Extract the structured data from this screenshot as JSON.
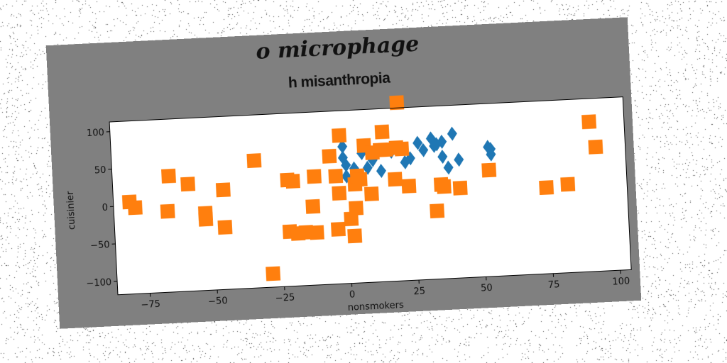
{
  "chart_data": {
    "type": "scatter",
    "suptitle": "o microphage",
    "title": "h misanthropia",
    "xlabel": "nonsmokers",
    "ylabel": "cuisinier",
    "xlim": [
      -87,
      104
    ],
    "ylim": [
      -118,
      113
    ],
    "xticks": [
      -75,
      -50,
      -25,
      0,
      25,
      50,
      75,
      100
    ],
    "yticks": [
      -100,
      -50,
      0,
      50,
      100
    ],
    "series": [
      {
        "marker": "diamond",
        "color": "#1f77b4",
        "points": [
          [
            -1,
            65
          ],
          [
            -1,
            50
          ],
          [
            0,
            40
          ],
          [
            0,
            25
          ],
          [
            2,
            20
          ],
          [
            3,
            35
          ],
          [
            6,
            55
          ],
          [
            8,
            35
          ],
          [
            10,
            45
          ],
          [
            13,
            30
          ],
          [
            17,
            55
          ],
          [
            20,
            60
          ],
          [
            22,
            40
          ],
          [
            24,
            45
          ],
          [
            27,
            65
          ],
          [
            29,
            55
          ],
          [
            32,
            70
          ],
          [
            33,
            60
          ],
          [
            34,
            62
          ],
          [
            36,
            65
          ],
          [
            36,
            45
          ],
          [
            38,
            30
          ],
          [
            40,
            75
          ],
          [
            42,
            40
          ],
          [
            53,
            55
          ],
          [
            54,
            52
          ],
          [
            54,
            45
          ]
        ]
      },
      {
        "marker": "square",
        "color": "#ff7f0e",
        "points": [
          [
            -81,
            5
          ],
          [
            -79,
            -3
          ],
          [
            -67,
            -10
          ],
          [
            -66,
            37
          ],
          [
            -59,
            25
          ],
          [
            -53,
            -15
          ],
          [
            -53,
            -23
          ],
          [
            -46,
            -35
          ],
          [
            -46,
            15
          ],
          [
            -34,
            52
          ],
          [
            -29,
            -100
          ],
          [
            -22,
            -45
          ],
          [
            -22,
            24
          ],
          [
            -20,
            22
          ],
          [
            -19,
            -48
          ],
          [
            -16,
            -47
          ],
          [
            -13,
            -13
          ],
          [
            -12,
            -48
          ],
          [
            -12,
            27
          ],
          [
            -6,
            53
          ],
          [
            -4,
            -45
          ],
          [
            -4,
            26
          ],
          [
            -3,
            3
          ],
          [
            -2,
            80
          ],
          [
            1,
            -32
          ],
          [
            2,
            -55
          ],
          [
            3,
            -18
          ],
          [
            3,
            14
          ],
          [
            4,
            25
          ],
          [
            5,
            20
          ],
          [
            7,
            65
          ],
          [
            9,
            0
          ],
          [
            10,
            55
          ],
          [
            13,
            58
          ],
          [
            14,
            82
          ],
          [
            15,
            58
          ],
          [
            18,
            18
          ],
          [
            19,
            60
          ],
          [
            20,
            120
          ],
          [
            21,
            58
          ],
          [
            23,
            8
          ],
          [
            33,
            -27
          ],
          [
            35,
            8
          ],
          [
            36,
            5
          ],
          [
            42,
            2
          ],
          [
            53,
            24
          ],
          [
            74,
            -3
          ],
          [
            82,
            0
          ],
          [
            91,
            82
          ],
          [
            93,
            48
          ]
        ]
      }
    ],
    "grid": false,
    "legend": "none"
  },
  "colors": {
    "figure_background": "#808080",
    "axes_background": "#ffffff",
    "series_1": "#1f77b4",
    "series_2": "#ff7f0e"
  }
}
